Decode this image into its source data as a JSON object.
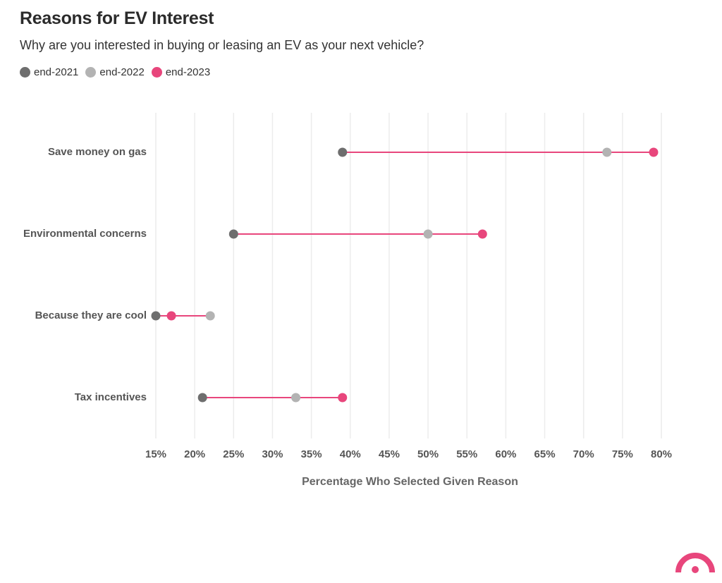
{
  "title": "Reasons for EV Interest",
  "subtitle": "Why are you interested in buying or leasing an EV as your next vehicle?",
  "colors": {
    "end-2021": "#6e6e6e",
    "end-2022": "#b3b3b3",
    "end-2023": "#e8467c",
    "connector": "#e8467c",
    "grid": "#ececec",
    "logo": "#e8467c"
  },
  "legend": [
    {
      "name": "end-2021",
      "color": "#6e6e6e"
    },
    {
      "name": "end-2022",
      "color": "#b3b3b3"
    },
    {
      "name": "end-2023",
      "color": "#e8467c"
    }
  ],
  "chart_data": {
    "type": "dumbbell",
    "title": "Reasons for EV Interest",
    "subtitle": "Why are you interested in buying or leasing an EV as your next vehicle?",
    "xlabel": "Percentage Who Selected Given Reason",
    "ylabel": "",
    "xlim": [
      15,
      80
    ],
    "xticks": [
      "15%",
      "20%",
      "25%",
      "30%",
      "35%",
      "40%",
      "45%",
      "50%",
      "55%",
      "60%",
      "65%",
      "70%",
      "75%",
      "80%"
    ],
    "xtick_values": [
      15,
      20,
      25,
      30,
      35,
      40,
      45,
      50,
      55,
      60,
      65,
      70,
      75,
      80
    ],
    "grid": true,
    "legend_position": "top-left",
    "categories": [
      "Save money on gas",
      "Environmental concerns",
      "Because they are cool",
      "Tax incentives"
    ],
    "series": [
      {
        "name": "end-2021",
        "values": [
          39,
          25,
          15,
          21
        ]
      },
      {
        "name": "end-2022",
        "values": [
          73,
          50,
          22,
          33
        ]
      },
      {
        "name": "end-2023",
        "values": [
          79,
          57,
          17,
          39
        ]
      }
    ]
  }
}
